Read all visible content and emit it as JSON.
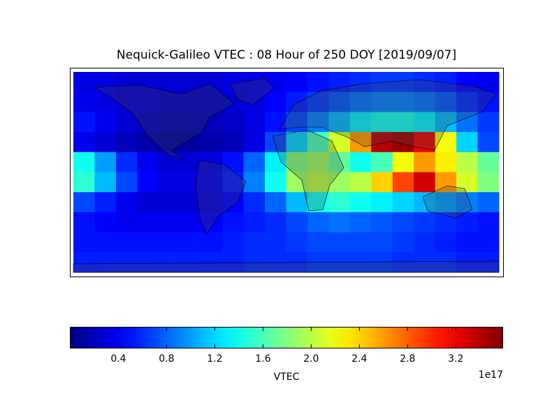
{
  "chart_data": {
    "type": "heatmap",
    "title": "Nequick-Galileo VTEC : 08 Hour of 250 DOY [2019/09/07]",
    "colormap": "jet",
    "values": [
      [
        0.35,
        0.35,
        0.3,
        0.3,
        0.3,
        0.3,
        0.3,
        0.35,
        0.35,
        0.4,
        0.45,
        0.5,
        0.55,
        0.6,
        0.65,
        0.65,
        0.6,
        0.55,
        0.45,
        0.4
      ],
      [
        0.4,
        0.35,
        0.3,
        0.3,
        0.25,
        0.25,
        0.25,
        0.3,
        0.35,
        0.45,
        0.55,
        0.65,
        0.75,
        0.85,
        0.9,
        0.9,
        0.85,
        0.75,
        0.6,
        0.5
      ],
      [
        0.5,
        0.4,
        0.3,
        0.25,
        0.2,
        0.2,
        0.2,
        0.25,
        0.35,
        0.5,
        0.7,
        0.9,
        1.1,
        1.3,
        1.4,
        1.4,
        1.3,
        1.1,
        0.85,
        0.65
      ],
      [
        0.4,
        0.3,
        0.2,
        0.15,
        0.12,
        0.12,
        0.15,
        0.2,
        0.35,
        0.7,
        1.2,
        1.6,
        2.1,
        2.6,
        3.4,
        3.5,
        3.2,
        2.2,
        1.2,
        0.7
      ],
      [
        1.4,
        1.0,
        0.6,
        0.4,
        0.3,
        0.3,
        0.35,
        0.5,
        0.8,
        1.3,
        1.8,
        1.9,
        1.7,
        1.4,
        1.6,
        2.2,
        2.6,
        2.3,
        2.0,
        1.7
      ],
      [
        1.5,
        1.1,
        0.7,
        0.45,
        0.35,
        0.35,
        0.4,
        0.55,
        0.9,
        1.4,
        1.9,
        2.0,
        1.9,
        2.0,
        2.4,
        2.9,
        3.3,
        2.6,
        2.1,
        1.8
      ],
      [
        0.7,
        0.55,
        0.4,
        0.3,
        0.3,
        0.3,
        0.35,
        0.45,
        0.6,
        0.8,
        1.1,
        1.4,
        1.5,
        1.4,
        1.3,
        1.2,
        1.1,
        1.0,
        0.9,
        0.8
      ],
      [
        0.5,
        0.45,
        0.4,
        0.4,
        0.4,
        0.4,
        0.45,
        0.5,
        0.55,
        0.6,
        0.7,
        0.8,
        0.85,
        0.8,
        0.75,
        0.7,
        0.65,
        0.6,
        0.55,
        0.5
      ],
      [
        0.5,
        0.5,
        0.5,
        0.5,
        0.5,
        0.5,
        0.5,
        0.55,
        0.6,
        0.6,
        0.65,
        0.7,
        0.7,
        0.7,
        0.7,
        0.65,
        0.6,
        0.55,
        0.5,
        0.5
      ],
      [
        0.55,
        0.55,
        0.55,
        0.55,
        0.55,
        0.55,
        0.55,
        0.55,
        0.6,
        0.6,
        0.6,
        0.65,
        0.65,
        0.65,
        0.65,
        0.6,
        0.6,
        0.6,
        0.55,
        0.55
      ]
    ],
    "zlim": [
      0,
      3.59
    ],
    "zticks": [
      0.4,
      0.8,
      1.2,
      1.6,
      {
        "value": 2,
        "label": "2.0"
      },
      2.4,
      2.8,
      3.2
    ],
    "colorbar_label": "VTEC",
    "colorbar_offset": "1e17"
  }
}
